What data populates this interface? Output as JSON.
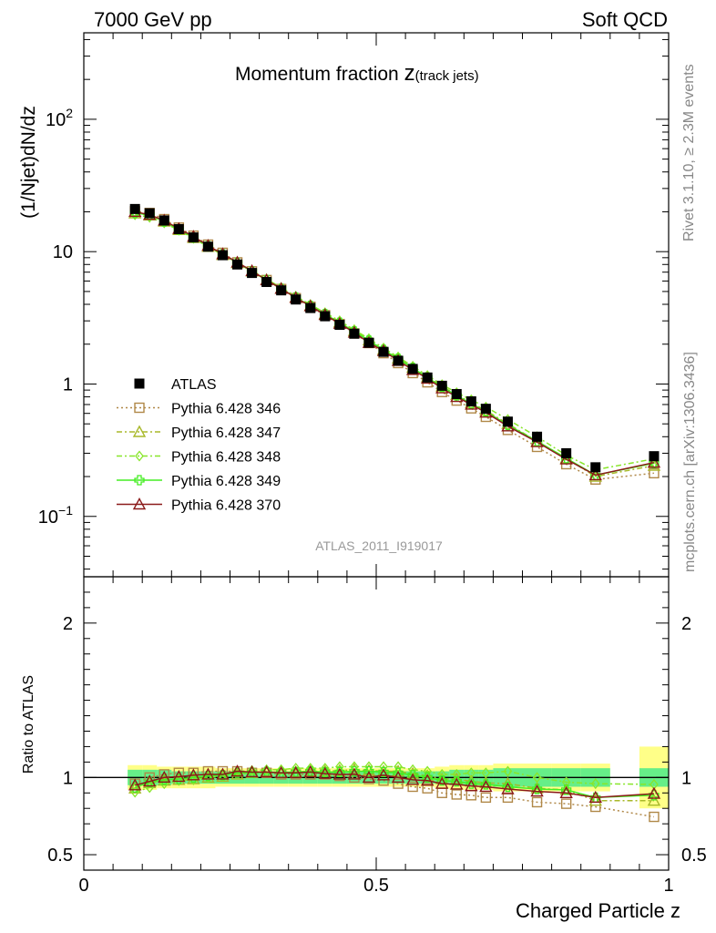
{
  "header": {
    "left": "7000 GeV pp",
    "right": "Soft QCD"
  },
  "side_labels": {
    "rivet": "Rivet 3.1.10, ≥ 2.3M events",
    "source": "mcplots.cern.ch [arXiv:1306.3436]"
  },
  "chart_data": [
    {
      "type": "line",
      "panel": "main",
      "title_main": "Momentum fraction ",
      "title_var": "z",
      "title_sub": "(track jets)",
      "ylabel": "(1/Njet)dN/dz",
      "watermark": "ATLAS_2011_I919017",
      "yscale": "log",
      "ylim": [
        0.035,
        450
      ],
      "xlim": [
        0,
        1
      ],
      "y_tick_labels": [
        {
          "value": 100,
          "base": "10",
          "exp": "2"
        },
        {
          "value": 10,
          "text": "10"
        },
        {
          "value": 1,
          "text": "1"
        },
        {
          "value": 0.1,
          "base": "10",
          "exp": "−1"
        }
      ],
      "x": [
        0.0875,
        0.1125,
        0.1375,
        0.1625,
        0.1875,
        0.2125,
        0.2375,
        0.2625,
        0.2875,
        0.3125,
        0.3375,
        0.3625,
        0.3875,
        0.4125,
        0.4375,
        0.4625,
        0.4875,
        0.5125,
        0.5375,
        0.5625,
        0.5875,
        0.6125,
        0.6375,
        0.6625,
        0.6875,
        0.725,
        0.775,
        0.825,
        0.875,
        0.975
      ],
      "series": [
        {
          "name": "ATLAS",
          "color": "#000000",
          "marker": "square-filled",
          "dash": "none",
          "values": [
            21.0,
            19.5,
            17.2,
            14.8,
            12.8,
            10.9,
            9.4,
            8.0,
            6.9,
            5.9,
            5.1,
            4.35,
            3.75,
            3.25,
            2.8,
            2.4,
            2.05,
            1.75,
            1.5,
            1.3,
            1.12,
            0.97,
            0.84,
            0.74,
            0.65,
            0.52,
            0.4,
            0.3,
            0.235,
            0.285
          ]
        },
        {
          "name": "Pythia 6.428 346",
          "color": "#b08848",
          "marker": "square-open",
          "dash": "2,3",
          "values": [
            20.2,
            19.6,
            17.6,
            15.2,
            13.2,
            11.3,
            9.8,
            8.3,
            7.1,
            6.1,
            5.22,
            4.45,
            3.83,
            3.31,
            2.84,
            2.41,
            2.04,
            1.71,
            1.44,
            1.21,
            1.03,
            0.87,
            0.75,
            0.655,
            0.565,
            0.45,
            0.335,
            0.248,
            0.19,
            0.212
          ]
        },
        {
          "name": "Pythia 6.428 347",
          "color": "#a8b82a",
          "marker": "triangle-open",
          "dash": "6,3,2,3",
          "values": [
            19.5,
            18.8,
            16.9,
            14.6,
            12.7,
            10.9,
            9.45,
            8.2,
            7.1,
            6.12,
            5.25,
            4.5,
            3.9,
            3.38,
            2.93,
            2.52,
            2.14,
            1.82,
            1.56,
            1.33,
            1.13,
            0.96,
            0.83,
            0.72,
            0.63,
            0.5,
            0.37,
            0.275,
            0.2,
            0.242
          ]
        },
        {
          "name": "Pythia 6.428 348",
          "color": "#88e62a",
          "marker": "diamond-open",
          "dash": "6,3,2,3",
          "values": [
            19.0,
            18.2,
            16.5,
            14.5,
            12.6,
            10.9,
            9.5,
            8.3,
            7.2,
            6.2,
            5.35,
            4.6,
            3.98,
            3.45,
            3.0,
            2.57,
            2.2,
            1.87,
            1.6,
            1.36,
            1.16,
            0.99,
            0.86,
            0.76,
            0.67,
            0.54,
            0.4,
            0.29,
            0.225,
            0.272
          ]
        },
        {
          "name": "Pythia 6.428 349",
          "color": "#44ee22",
          "marker": "cross-open",
          "dash": "none",
          "values": [
            19.6,
            18.9,
            16.9,
            14.7,
            12.8,
            11.0,
            9.55,
            8.25,
            7.1,
            6.1,
            5.25,
            4.5,
            3.9,
            3.37,
            2.9,
            2.5,
            2.13,
            1.81,
            1.55,
            1.32,
            1.12,
            0.95,
            0.82,
            0.71,
            0.62,
            0.49,
            0.37,
            0.275,
            0.205,
            0.252
          ]
        },
        {
          "name": "Pythia 6.428 370",
          "color": "#8b1a1a",
          "marker": "triangle-open",
          "dash": "none",
          "values": [
            20.0,
            19.0,
            17.2,
            14.9,
            13.0,
            11.1,
            9.6,
            8.3,
            7.15,
            6.1,
            5.25,
            4.48,
            3.88,
            3.33,
            2.86,
            2.45,
            2.05,
            1.78,
            1.5,
            1.28,
            1.1,
            0.93,
            0.8,
            0.7,
            0.61,
            0.48,
            0.365,
            0.27,
            0.205,
            0.255
          ]
        }
      ],
      "legend_position": "center-left"
    },
    {
      "type": "line",
      "panel": "ratio",
      "ylabel": "Ratio to ATLAS",
      "xlabel": "Charged Particle z",
      "ylim": [
        0.4,
        2.3
      ],
      "xlim": [
        0,
        1
      ],
      "y_tick_labels": [
        {
          "value": 2,
          "text": "2"
        },
        {
          "value": 1,
          "text": "1"
        },
        {
          "value": 0.5,
          "text": "0.5"
        }
      ],
      "x_tick_labels": [
        {
          "value": 0,
          "text": "0"
        },
        {
          "value": 0.5,
          "text": "0.5"
        },
        {
          "value": 1,
          "text": "1"
        }
      ],
      "reference": 1,
      "bins": [
        [
          0.075,
          0.1
        ],
        [
          0.1,
          0.125
        ],
        [
          0.125,
          0.15
        ],
        [
          0.15,
          0.175
        ],
        [
          0.175,
          0.2
        ],
        [
          0.2,
          0.225
        ],
        [
          0.225,
          0.25
        ],
        [
          0.25,
          0.275
        ],
        [
          0.275,
          0.3
        ],
        [
          0.3,
          0.325
        ],
        [
          0.325,
          0.35
        ],
        [
          0.35,
          0.375
        ],
        [
          0.375,
          0.4
        ],
        [
          0.4,
          0.425
        ],
        [
          0.425,
          0.45
        ],
        [
          0.45,
          0.475
        ],
        [
          0.475,
          0.5
        ],
        [
          0.5,
          0.525
        ],
        [
          0.525,
          0.55
        ],
        [
          0.55,
          0.575
        ],
        [
          0.575,
          0.6
        ],
        [
          0.6,
          0.625
        ],
        [
          0.625,
          0.65
        ],
        [
          0.65,
          0.675
        ],
        [
          0.675,
          0.7
        ],
        [
          0.7,
          0.75
        ],
        [
          0.75,
          0.8
        ],
        [
          0.8,
          0.85
        ],
        [
          0.85,
          0.9
        ],
        [
          0.95,
          1.0
        ]
      ],
      "band_stat": [
        0.05,
        0.05,
        0.05,
        0.04,
        0.04,
        0.04,
        0.04,
        0.04,
        0.04,
        0.04,
        0.04,
        0.04,
        0.04,
        0.04,
        0.04,
        0.04,
        0.04,
        0.04,
        0.04,
        0.04,
        0.04,
        0.04,
        0.05,
        0.05,
        0.05,
        0.06,
        0.06,
        0.06,
        0.06,
        0.06
      ],
      "band_total": [
        0.08,
        0.08,
        0.07,
        0.07,
        0.07,
        0.07,
        0.06,
        0.06,
        0.06,
        0.06,
        0.06,
        0.06,
        0.06,
        0.06,
        0.06,
        0.06,
        0.06,
        0.06,
        0.06,
        0.06,
        0.06,
        0.07,
        0.08,
        0.08,
        0.08,
        0.09,
        0.09,
        0.09,
        0.09,
        0.2
      ],
      "band_colors": {
        "total": "#ffff88",
        "stat": "#66ee88"
      },
      "series": [
        {
          "name": "Pythia 6.428 346",
          "values": [
            0.96,
            1.0,
            1.02,
            1.03,
            1.03,
            1.04,
            1.04,
            1.04,
            1.03,
            1.03,
            1.02,
            1.02,
            1.02,
            1.02,
            1.01,
            1.0,
            0.99,
            0.98,
            0.96,
            0.94,
            0.93,
            0.9,
            0.89,
            0.885,
            0.87,
            0.87,
            0.84,
            0.83,
            0.81,
            0.745
          ]
        },
        {
          "name": "Pythia 6.428 347",
          "values": [
            0.93,
            0.965,
            0.98,
            0.985,
            0.99,
            1.0,
            1.005,
            1.02,
            1.03,
            1.04,
            1.03,
            1.035,
            1.04,
            1.04,
            1.045,
            1.05,
            1.045,
            1.04,
            1.04,
            1.025,
            1.01,
            0.99,
            0.99,
            0.975,
            0.965,
            0.96,
            0.93,
            0.92,
            0.85,
            0.85
          ]
        },
        {
          "name": "Pythia 6.428 348",
          "values": [
            0.905,
            0.935,
            0.96,
            0.98,
            0.985,
            1.0,
            1.01,
            1.04,
            1.045,
            1.05,
            1.05,
            1.06,
            1.06,
            1.06,
            1.07,
            1.07,
            1.07,
            1.07,
            1.07,
            1.05,
            1.04,
            1.02,
            1.02,
            1.03,
            1.03,
            1.04,
            1.0,
            0.97,
            0.96,
            0.955
          ]
        },
        {
          "name": "Pythia 6.428 349",
          "values": [
            0.935,
            0.97,
            0.985,
            0.99,
            1.0,
            1.01,
            1.015,
            1.03,
            1.03,
            1.035,
            1.03,
            1.035,
            1.04,
            1.035,
            1.035,
            1.04,
            1.04,
            1.035,
            1.03,
            1.015,
            1.0,
            0.98,
            0.975,
            0.96,
            0.955,
            0.94,
            0.925,
            0.92,
            0.87,
            0.885
          ]
        },
        {
          "name": "Pythia 6.428 370",
          "values": [
            0.95,
            0.975,
            1.0,
            1.005,
            1.015,
            1.02,
            1.02,
            1.04,
            1.035,
            1.035,
            1.03,
            1.03,
            1.035,
            1.025,
            1.02,
            1.02,
            1.0,
            1.015,
            1.0,
            0.985,
            0.98,
            0.96,
            0.955,
            0.945,
            0.94,
            0.925,
            0.91,
            0.9,
            0.87,
            0.895
          ]
        }
      ]
    }
  ]
}
